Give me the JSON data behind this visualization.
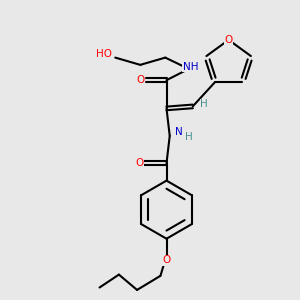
{
  "background_color": "#e8e8e8",
  "atom_colors": {
    "N": "#0000cd",
    "O": "#ff0000",
    "H": "#4a9090"
  },
  "bond_color": "#000000"
}
